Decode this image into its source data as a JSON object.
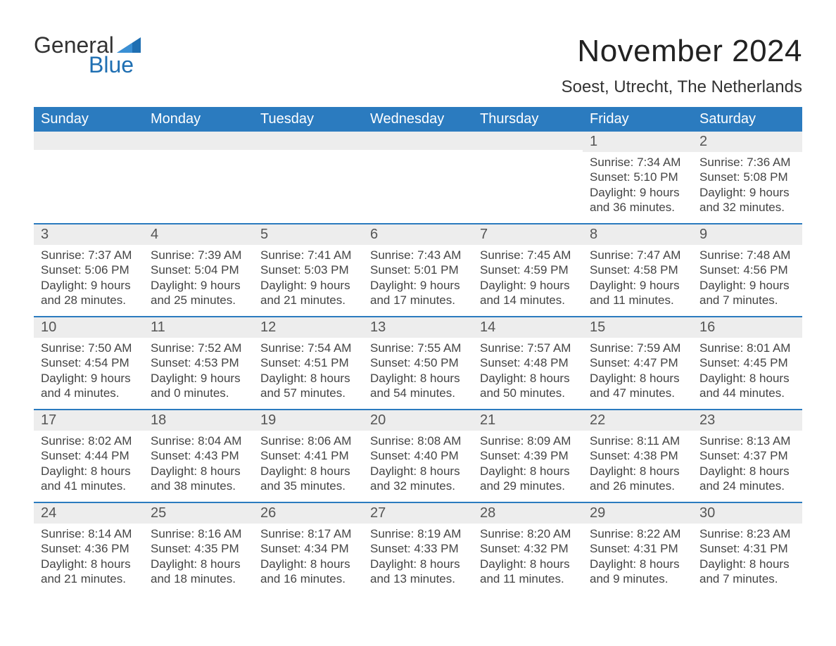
{
  "logo": {
    "top": "General",
    "bottom": "Blue",
    "accent_color": "#1f6fb2"
  },
  "title": "November 2024",
  "location": "Soest, Utrecht, The Netherlands",
  "colors": {
    "header_bg": "#2b7bbf",
    "header_text": "#ffffff",
    "row_divider": "#2b7bbf",
    "daynum_bg": "#ededed",
    "body_text": "#444444",
    "background": "#ffffff"
  },
  "typography": {
    "title_fontsize": 44,
    "location_fontsize": 24,
    "header_fontsize": 20,
    "daynum_fontsize": 20,
    "cell_fontsize": 17
  },
  "day_names": [
    "Sunday",
    "Monday",
    "Tuesday",
    "Wednesday",
    "Thursday",
    "Friday",
    "Saturday"
  ],
  "weeks": [
    [
      null,
      null,
      null,
      null,
      null,
      {
        "n": "1",
        "sunrise": "7:34 AM",
        "sunset": "5:10 PM",
        "daylight1": "Daylight: 9 hours",
        "daylight2": "and 36 minutes."
      },
      {
        "n": "2",
        "sunrise": "7:36 AM",
        "sunset": "5:08 PM",
        "daylight1": "Daylight: 9 hours",
        "daylight2": "and 32 minutes."
      }
    ],
    [
      {
        "n": "3",
        "sunrise": "7:37 AM",
        "sunset": "5:06 PM",
        "daylight1": "Daylight: 9 hours",
        "daylight2": "and 28 minutes."
      },
      {
        "n": "4",
        "sunrise": "7:39 AM",
        "sunset": "5:04 PM",
        "daylight1": "Daylight: 9 hours",
        "daylight2": "and 25 minutes."
      },
      {
        "n": "5",
        "sunrise": "7:41 AM",
        "sunset": "5:03 PM",
        "daylight1": "Daylight: 9 hours",
        "daylight2": "and 21 minutes."
      },
      {
        "n": "6",
        "sunrise": "7:43 AM",
        "sunset": "5:01 PM",
        "daylight1": "Daylight: 9 hours",
        "daylight2": "and 17 minutes."
      },
      {
        "n": "7",
        "sunrise": "7:45 AM",
        "sunset": "4:59 PM",
        "daylight1": "Daylight: 9 hours",
        "daylight2": "and 14 minutes."
      },
      {
        "n": "8",
        "sunrise": "7:47 AM",
        "sunset": "4:58 PM",
        "daylight1": "Daylight: 9 hours",
        "daylight2": "and 11 minutes."
      },
      {
        "n": "9",
        "sunrise": "7:48 AM",
        "sunset": "4:56 PM",
        "daylight1": "Daylight: 9 hours",
        "daylight2": "and 7 minutes."
      }
    ],
    [
      {
        "n": "10",
        "sunrise": "7:50 AM",
        "sunset": "4:54 PM",
        "daylight1": "Daylight: 9 hours",
        "daylight2": "and 4 minutes."
      },
      {
        "n": "11",
        "sunrise": "7:52 AM",
        "sunset": "4:53 PM",
        "daylight1": "Daylight: 9 hours",
        "daylight2": "and 0 minutes."
      },
      {
        "n": "12",
        "sunrise": "7:54 AM",
        "sunset": "4:51 PM",
        "daylight1": "Daylight: 8 hours",
        "daylight2": "and 57 minutes."
      },
      {
        "n": "13",
        "sunrise": "7:55 AM",
        "sunset": "4:50 PM",
        "daylight1": "Daylight: 8 hours",
        "daylight2": "and 54 minutes."
      },
      {
        "n": "14",
        "sunrise": "7:57 AM",
        "sunset": "4:48 PM",
        "daylight1": "Daylight: 8 hours",
        "daylight2": "and 50 minutes."
      },
      {
        "n": "15",
        "sunrise": "7:59 AM",
        "sunset": "4:47 PM",
        "daylight1": "Daylight: 8 hours",
        "daylight2": "and 47 minutes."
      },
      {
        "n": "16",
        "sunrise": "8:01 AM",
        "sunset": "4:45 PM",
        "daylight1": "Daylight: 8 hours",
        "daylight2": "and 44 minutes."
      }
    ],
    [
      {
        "n": "17",
        "sunrise": "8:02 AM",
        "sunset": "4:44 PM",
        "daylight1": "Daylight: 8 hours",
        "daylight2": "and 41 minutes."
      },
      {
        "n": "18",
        "sunrise": "8:04 AM",
        "sunset": "4:43 PM",
        "daylight1": "Daylight: 8 hours",
        "daylight2": "and 38 minutes."
      },
      {
        "n": "19",
        "sunrise": "8:06 AM",
        "sunset": "4:41 PM",
        "daylight1": "Daylight: 8 hours",
        "daylight2": "and 35 minutes."
      },
      {
        "n": "20",
        "sunrise": "8:08 AM",
        "sunset": "4:40 PM",
        "daylight1": "Daylight: 8 hours",
        "daylight2": "and 32 minutes."
      },
      {
        "n": "21",
        "sunrise": "8:09 AM",
        "sunset": "4:39 PM",
        "daylight1": "Daylight: 8 hours",
        "daylight2": "and 29 minutes."
      },
      {
        "n": "22",
        "sunrise": "8:11 AM",
        "sunset": "4:38 PM",
        "daylight1": "Daylight: 8 hours",
        "daylight2": "and 26 minutes."
      },
      {
        "n": "23",
        "sunrise": "8:13 AM",
        "sunset": "4:37 PM",
        "daylight1": "Daylight: 8 hours",
        "daylight2": "and 24 minutes."
      }
    ],
    [
      {
        "n": "24",
        "sunrise": "8:14 AM",
        "sunset": "4:36 PM",
        "daylight1": "Daylight: 8 hours",
        "daylight2": "and 21 minutes."
      },
      {
        "n": "25",
        "sunrise": "8:16 AM",
        "sunset": "4:35 PM",
        "daylight1": "Daylight: 8 hours",
        "daylight2": "and 18 minutes."
      },
      {
        "n": "26",
        "sunrise": "8:17 AM",
        "sunset": "4:34 PM",
        "daylight1": "Daylight: 8 hours",
        "daylight2": "and 16 minutes."
      },
      {
        "n": "27",
        "sunrise": "8:19 AM",
        "sunset": "4:33 PM",
        "daylight1": "Daylight: 8 hours",
        "daylight2": "and 13 minutes."
      },
      {
        "n": "28",
        "sunrise": "8:20 AM",
        "sunset": "4:32 PM",
        "daylight1": "Daylight: 8 hours",
        "daylight2": "and 11 minutes."
      },
      {
        "n": "29",
        "sunrise": "8:22 AM",
        "sunset": "4:31 PM",
        "daylight1": "Daylight: 8 hours",
        "daylight2": "and 9 minutes."
      },
      {
        "n": "30",
        "sunrise": "8:23 AM",
        "sunset": "4:31 PM",
        "daylight1": "Daylight: 8 hours",
        "daylight2": "and 7 minutes."
      }
    ]
  ],
  "labels": {
    "sunrise_prefix": "Sunrise: ",
    "sunset_prefix": "Sunset: "
  }
}
